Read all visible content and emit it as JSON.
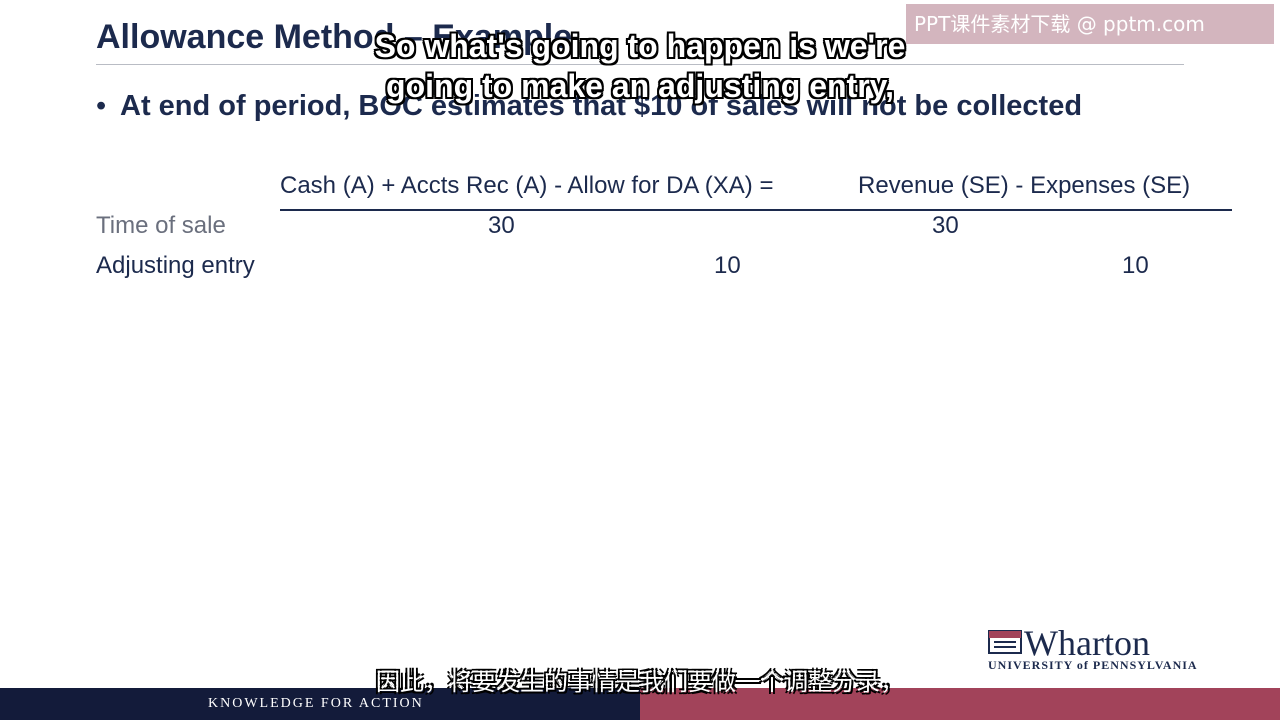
{
  "slide": {
    "title": "Allowance Method – Example",
    "bullet": "At end of period, BOC estimates that $10 of sales will not be collected"
  },
  "watermark": "PPT课件素材下载 @ pptm.com",
  "table": {
    "header": {
      "left": "Cash (A) + Accts Rec (A) - Allow for DA (XA) =",
      "right": "Revenue (SE) - Expenses (SE)"
    },
    "rows": [
      {
        "label": "Time of sale",
        "accts_rec": "30",
        "revenue": "30"
      },
      {
        "label": "Adjusting entry",
        "allow_da": "10",
        "expenses": "10"
      }
    ]
  },
  "subtitles": {
    "en_line1": "So what's going to happen is we're",
    "en_line2": "going to make an adjusting entry,",
    "cn": "因此，将要发生的事情是我们要做一个调整分录，"
  },
  "logo": {
    "name": "Wharton",
    "university": "UNIVERSITY of PENNSYLVANIA"
  },
  "footer": {
    "tagline": "KNOWLEDGE FOR ACTION"
  },
  "colors": {
    "navy": "#1c2a4d",
    "footer_navy": "#131b3a",
    "footer_red": "#a2435a",
    "row1_label": "#6a6f7d",
    "row2_label": "#1c2a4d"
  }
}
